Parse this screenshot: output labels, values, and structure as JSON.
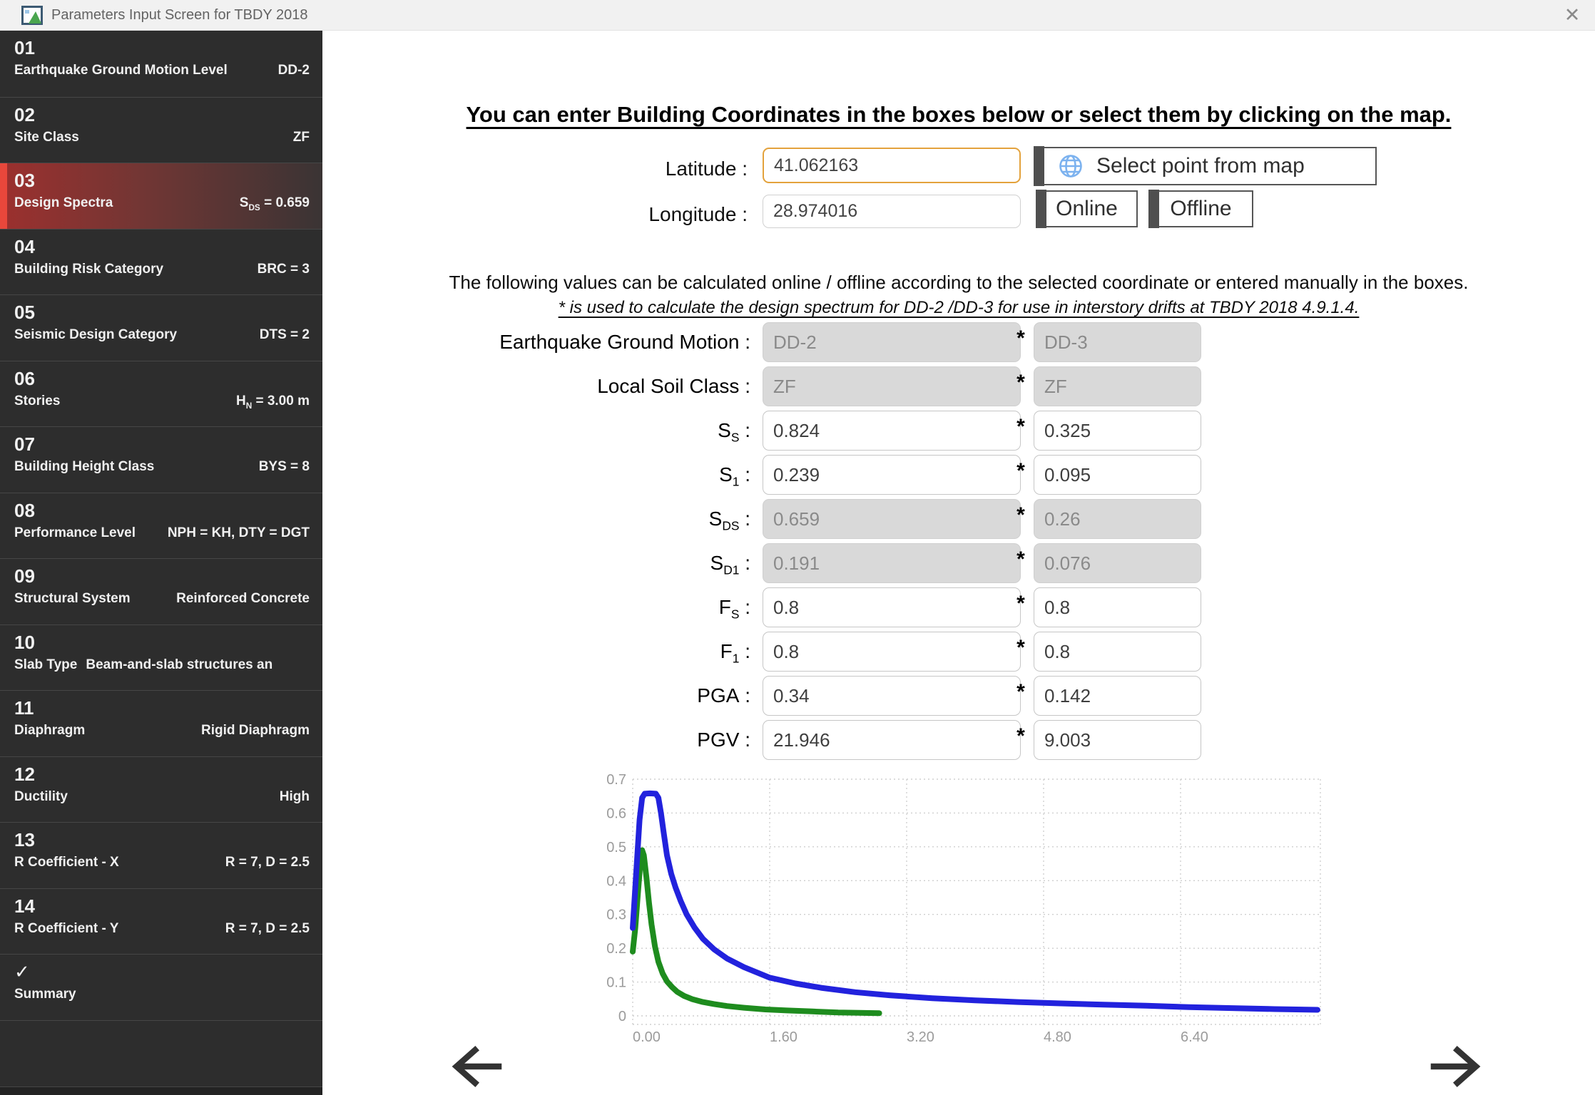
{
  "window": {
    "title": "Parameters Input Screen for TBDY 2018",
    "close_glyph": "✕"
  },
  "colors": {
    "selected_red": "#e8473b",
    "focus_orange": "#e3a23c",
    "sidebar_bg": "#2d2d2d"
  },
  "icons": {
    "app": "form-window-icon",
    "globe": "globe-icon",
    "back": "arrow-left-icon",
    "next": "arrow-right-icon",
    "close": "close-icon",
    "check": "✓"
  },
  "sidebar": {
    "items": [
      {
        "number": "01",
        "label": "Earthquake Ground Motion Level",
        "value_base": "DD-2",
        "value_sub": "",
        "value_end": ""
      },
      {
        "number": "02",
        "label": "Site Class",
        "value_base": "ZF",
        "value_sub": "",
        "value_end": ""
      },
      {
        "number": "03",
        "label": "Design Spectra",
        "value_base": "S",
        "value_sub": "DS",
        "value_end": " = 0.659"
      },
      {
        "number": "04",
        "label": "Building Risk Category",
        "value_base": "BRC = 3",
        "value_sub": "",
        "value_end": ""
      },
      {
        "number": "05",
        "label": "Seismic Design Category",
        "value_base": "DTS = 2",
        "value_sub": "",
        "value_end": ""
      },
      {
        "number": "06",
        "label": "Stories",
        "value_base": "H",
        "value_sub": "N",
        "value_end": " = 3.00 m"
      },
      {
        "number": "07",
        "label": "Building Height Class",
        "value_base": "BYS = 8",
        "value_sub": "",
        "value_end": ""
      },
      {
        "number": "08",
        "label": "Performance Level",
        "value_base": "NPH = KH, DTY = DGT",
        "value_sub": "",
        "value_end": ""
      },
      {
        "number": "09",
        "label": "Structural System",
        "value_base": "Reinforced Concrete",
        "value_sub": "",
        "value_end": ""
      },
      {
        "number": "10",
        "label": "Slab Type",
        "value_base": "Beam-and-slab structures an",
        "value_sub": "",
        "value_end": ""
      },
      {
        "number": "11",
        "label": "Diaphragm",
        "value_base": "Rigid Diaphragm",
        "value_sub": "",
        "value_end": ""
      },
      {
        "number": "12",
        "label": "Ductility",
        "value_base": "High",
        "value_sub": "",
        "value_end": ""
      },
      {
        "number": "13",
        "label": "R Coefficient - X",
        "value_base": "R = 7, D = 2.5",
        "value_sub": "",
        "value_end": ""
      },
      {
        "number": "14",
        "label": "R Coefficient - Y",
        "value_base": "R = 7, D = 2.5",
        "value_sub": "",
        "value_end": ""
      },
      {
        "number": "✓",
        "label": "Summary",
        "value_base": "",
        "value_sub": "",
        "value_end": ""
      }
    ]
  },
  "main": {
    "heading": "You can enter Building Coordinates in the boxes below or select them by clicking on the map.",
    "coords": {
      "latitude_label": "Latitude :",
      "latitude_value": "41.062163",
      "longitude_label": "Longitude :",
      "longitude_value": "28.974016"
    },
    "buttons": {
      "select_map": "Select point from map",
      "online": "Online",
      "offline": "Offline"
    },
    "note1": "The following values can be calculated online / offline according to the selected coordinate or entered manually in the boxes.",
    "note2": "* is used to calculate the design spectrum for DD-2 /DD-3 for use in interstory drifts at TBDY 2018 4.9.1.4.",
    "form": {
      "star": "*",
      "colon": " :",
      "rows": [
        {
          "label": "Earthquake Ground Motion",
          "sub": "",
          "value1": "DD-2",
          "value2": "DD-3"
        },
        {
          "label": "Local Soil Class",
          "sub": "",
          "value1": "ZF",
          "value2": "ZF"
        },
        {
          "label": "S",
          "sub": "S",
          "value1": "0.824",
          "value2": "0.325"
        },
        {
          "label": "S",
          "sub": "1",
          "value1": "0.239",
          "value2": "0.095"
        },
        {
          "label": "S",
          "sub": "DS",
          "value1": "0.659",
          "value2": "0.26"
        },
        {
          "label": "S",
          "sub": "D1",
          "value1": "0.191",
          "value2": "0.076"
        },
        {
          "label": "F",
          "sub": "S",
          "value1": "0.8",
          "value2": "0.8"
        },
        {
          "label": "F",
          "sub": "1",
          "value1": "0.8",
          "value2": "0.8"
        },
        {
          "label": "PGA",
          "sub": "",
          "value1": "0.34",
          "value2": "0.142"
        },
        {
          "label": "PGV",
          "sub": "",
          "value1": "21.946",
          "value2": "9.003"
        }
      ]
    }
  },
  "chart_data": {
    "type": "line",
    "title": "",
    "xlabel": "",
    "ylabel": "",
    "xlim": [
      0,
      8.03
    ],
    "ylim": [
      0,
      0.725
    ],
    "grid": "dotted",
    "legend": "none",
    "x_ticks": [
      0,
      1.6,
      3.2,
      4.8,
      6.4
    ],
    "x_tick_labels": [
      "0.00",
      "1.60",
      "3.20",
      "4.80",
      "6.40"
    ],
    "y_ticks": [
      0,
      0.1,
      0.2,
      0.3,
      0.4,
      0.5,
      0.6,
      0.7
    ],
    "y_tick_labels": [
      "0",
      "0.1",
      "0.2",
      "0.3",
      "0.4",
      "0.5",
      "0.6",
      "0.7"
    ],
    "series": [
      {
        "name": "green-spectrum",
        "color": "#1e8c1e",
        "width": 8,
        "points": [
          [
            0,
            0.19
          ],
          [
            0.03,
            0.26
          ],
          [
            0.06,
            0.36
          ],
          [
            0.09,
            0.455
          ],
          [
            0.11,
            0.49
          ],
          [
            0.13,
            0.475
          ],
          [
            0.16,
            0.41
          ],
          [
            0.19,
            0.335
          ],
          [
            0.22,
            0.27
          ],
          [
            0.26,
            0.205
          ],
          [
            0.3,
            0.16
          ],
          [
            0.35,
            0.125
          ],
          [
            0.4,
            0.102
          ],
          [
            0.46,
            0.085
          ],
          [
            0.52,
            0.071
          ],
          [
            0.6,
            0.059
          ],
          [
            0.7,
            0.049
          ],
          [
            0.82,
            0.041
          ],
          [
            0.95,
            0.035
          ],
          [
            1.1,
            0.029
          ],
          [
            1.3,
            0.024
          ],
          [
            1.55,
            0.019
          ],
          [
            1.8,
            0.016
          ],
          [
            2.1,
            0.013
          ],
          [
            2.4,
            0.01
          ],
          [
            2.65,
            0.009
          ],
          [
            2.88,
            0.008
          ]
        ]
      },
      {
        "name": "blue-spectrum",
        "color": "#2222dd",
        "width": 8,
        "points": [
          [
            0,
            0.26
          ],
          [
            0.04,
            0.42
          ],
          [
            0.08,
            0.58
          ],
          [
            0.11,
            0.645
          ],
          [
            0.14,
            0.657
          ],
          [
            0.2,
            0.658
          ],
          [
            0.27,
            0.657
          ],
          [
            0.3,
            0.645
          ],
          [
            0.33,
            0.6
          ],
          [
            0.36,
            0.545
          ],
          [
            0.4,
            0.475
          ],
          [
            0.45,
            0.42
          ],
          [
            0.5,
            0.38
          ],
          [
            0.56,
            0.34
          ],
          [
            0.63,
            0.3
          ],
          [
            0.72,
            0.262
          ],
          [
            0.82,
            0.228
          ],
          [
            0.95,
            0.197
          ],
          [
            1.1,
            0.17
          ],
          [
            1.3,
            0.144
          ],
          [
            1.6,
            0.113
          ],
          [
            1.9,
            0.096
          ],
          [
            2.2,
            0.083
          ],
          [
            2.6,
            0.07
          ],
          [
            3.0,
            0.061
          ],
          [
            3.5,
            0.052
          ],
          [
            4.0,
            0.046
          ],
          [
            4.5,
            0.041
          ],
          [
            5.0,
            0.037
          ],
          [
            5.5,
            0.033
          ],
          [
            6.0,
            0.03
          ],
          [
            6.5,
            0.026
          ],
          [
            7.0,
            0.023
          ],
          [
            7.5,
            0.02
          ],
          [
            8.0,
            0.018
          ]
        ]
      }
    ]
  }
}
